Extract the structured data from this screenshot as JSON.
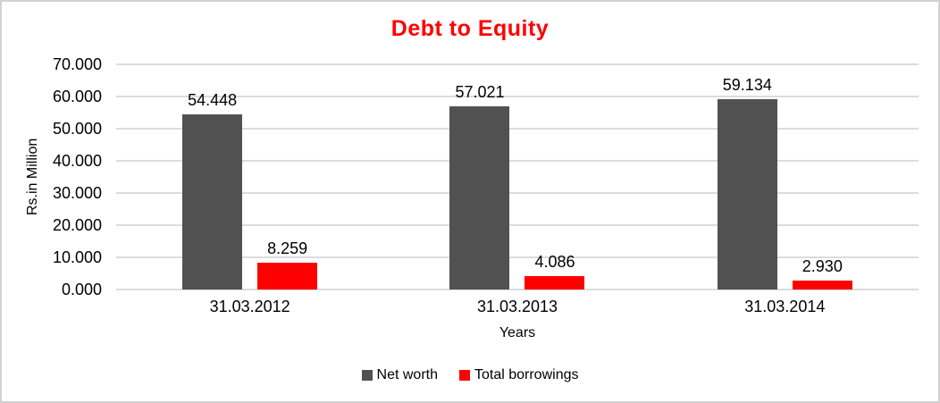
{
  "window": {
    "background": "#ffffff",
    "border_color": "#d2d2d2"
  },
  "chart_data": {
    "type": "bar",
    "title": "Debt to Equity",
    "title_color": "#ff0000",
    "categories": [
      "31.03.2012",
      "31.03.2013",
      "31.03.2014"
    ],
    "series": [
      {
        "name": "Net worth",
        "color": "#515151",
        "values": [
          54.448,
          57.021,
          59.134
        ],
        "labels": [
          "54.448",
          "57.021",
          "59.134"
        ]
      },
      {
        "name": "Total borrowings",
        "color": "#ff0000",
        "values": [
          8.259,
          4.086,
          2.93
        ],
        "labels": [
          "8.259",
          "4.086",
          "2.930"
        ]
      }
    ],
    "xlabel": "Years",
    "ylabel": "Rs.in Million",
    "ylim": [
      0,
      70
    ],
    "ytick_step": 10,
    "ytick_labels": [
      "0.000",
      "10.000",
      "20.000",
      "30.000",
      "40.000",
      "50.000",
      "60.000",
      "70.000"
    ],
    "grid": true,
    "gridline_color": "#dcdcdc",
    "legend_position": "bottom",
    "text_color": "#000000"
  }
}
